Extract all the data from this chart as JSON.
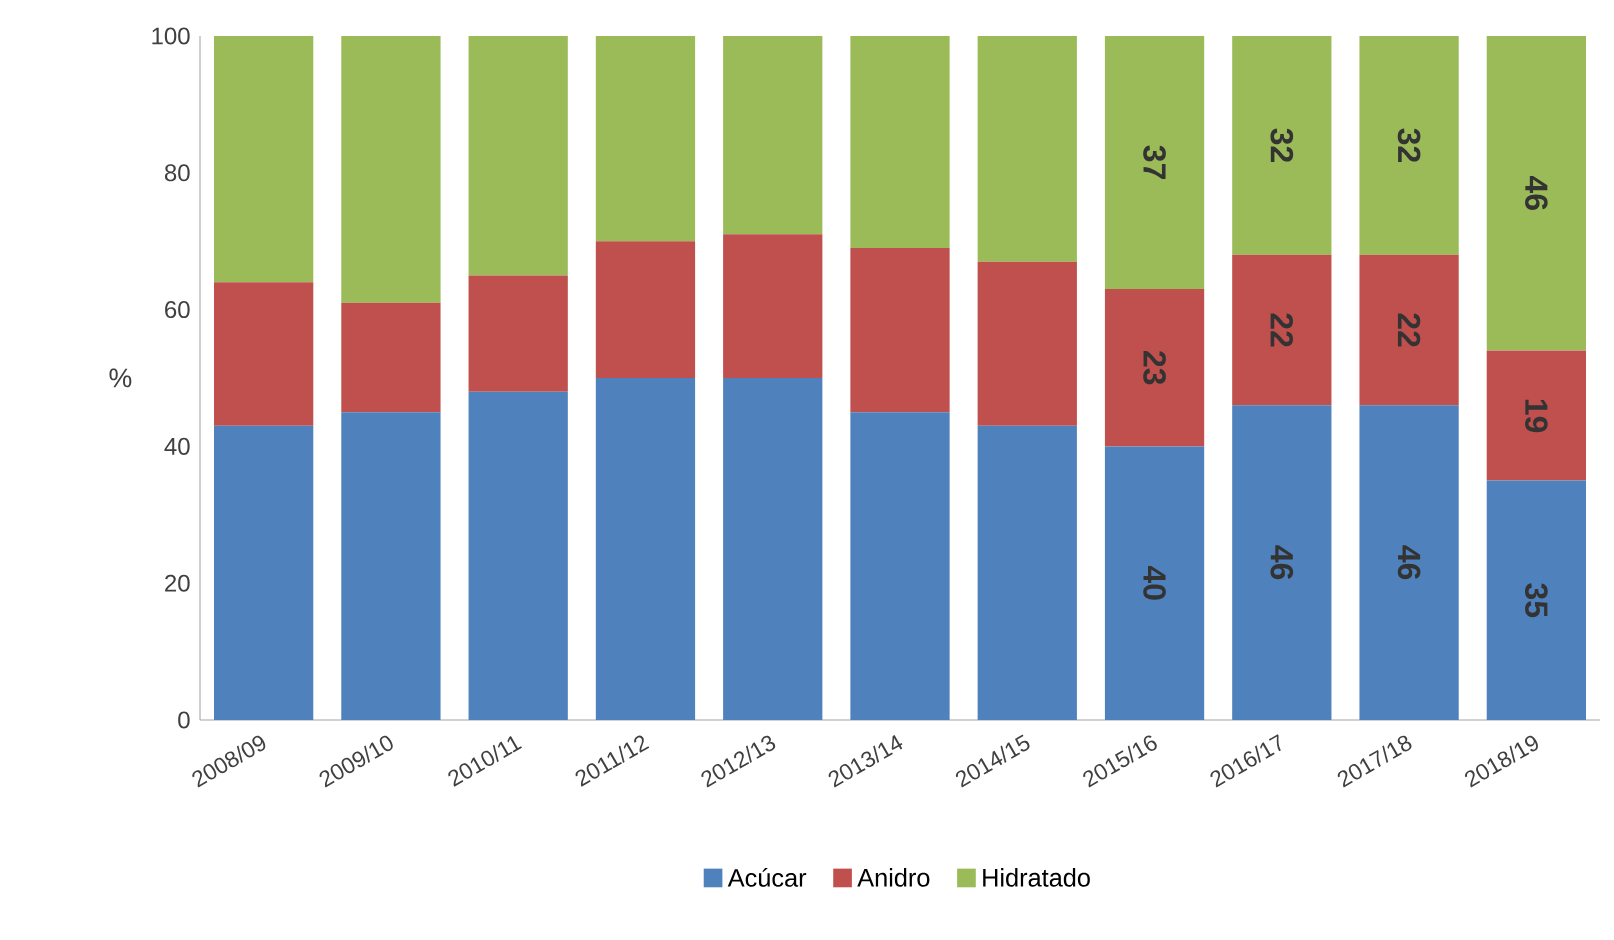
{
  "chart_data": {
    "type": "bar",
    "stacked": true,
    "ylabel": "%",
    "categories": [
      "2008/09",
      "2009/10",
      "2010/11",
      "2011/12",
      "2012/13",
      "2013/14",
      "2014/15",
      "2015/16",
      "2016/17",
      "2017/18",
      "2018/19"
    ],
    "series": [
      {
        "name": "Acúcar",
        "color": "#4f81bd",
        "values": [
          43,
          45,
          48,
          50,
          50,
          45,
          43,
          40,
          46,
          46,
          35
        ],
        "value_labels": [
          null,
          null,
          null,
          null,
          null,
          null,
          null,
          "40",
          "46",
          "46",
          "35"
        ]
      },
      {
        "name": "Anidro",
        "color": "#c0504d",
        "values": [
          21,
          16,
          17,
          20,
          21,
          24,
          24,
          23,
          22,
          22,
          19
        ],
        "value_labels": [
          null,
          null,
          null,
          null,
          null,
          null,
          null,
          "23",
          "22",
          "22",
          "19"
        ]
      },
      {
        "name": "Hidratado",
        "color": "#9bbb59",
        "values": [
          36,
          39,
          35,
          30,
          29,
          31,
          33,
          37,
          32,
          32,
          46
        ],
        "value_labels": [
          null,
          null,
          null,
          null,
          null,
          null,
          null,
          "37",
          "32",
          "32",
          "46"
        ]
      }
    ],
    "ylim": [
      0,
      100
    ],
    "yticks": [
      0,
      20,
      40,
      60,
      80,
      100
    ],
    "legend": "bottom"
  }
}
